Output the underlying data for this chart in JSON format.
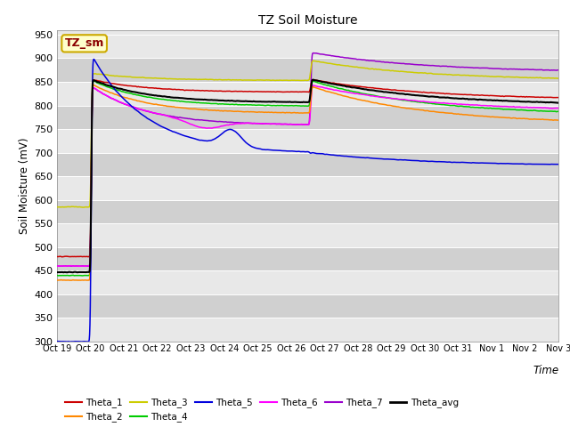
{
  "title": "TZ Soil Moisture",
  "xlabel": "Time",
  "ylabel": "Soil Moisture (mV)",
  "ylim": [
    300,
    960
  ],
  "yticks": [
    300,
    350,
    400,
    450,
    500,
    550,
    600,
    650,
    700,
    750,
    800,
    850,
    900,
    950
  ],
  "legend_label": "TZ_sm",
  "series_colors": {
    "Theta_1": "#cc0000",
    "Theta_2": "#ff8800",
    "Theta_3": "#cccc00",
    "Theta_4": "#00cc00",
    "Theta_5": "#0000dd",
    "Theta_6": "#ff00ff",
    "Theta_7": "#9900cc",
    "Theta_avg": "#000000"
  },
  "bg_light": "#e8e8e8",
  "bg_dark": "#d0d0d0",
  "n_days": 16,
  "date_labels": [
    "Oct 19",
    "Oct 20",
    "Oct 21",
    "Oct 22",
    "Oct 23",
    "Oct 24",
    "Oct 25",
    "Oct 26",
    "Oct 27",
    "Oct 28",
    "Oct 29",
    "Oct 30",
    "Oct 31",
    "Nov 1",
    "Nov 2",
    "Nov 3"
  ],
  "spike1_day": 1.0,
  "spike2_day": 7.55
}
